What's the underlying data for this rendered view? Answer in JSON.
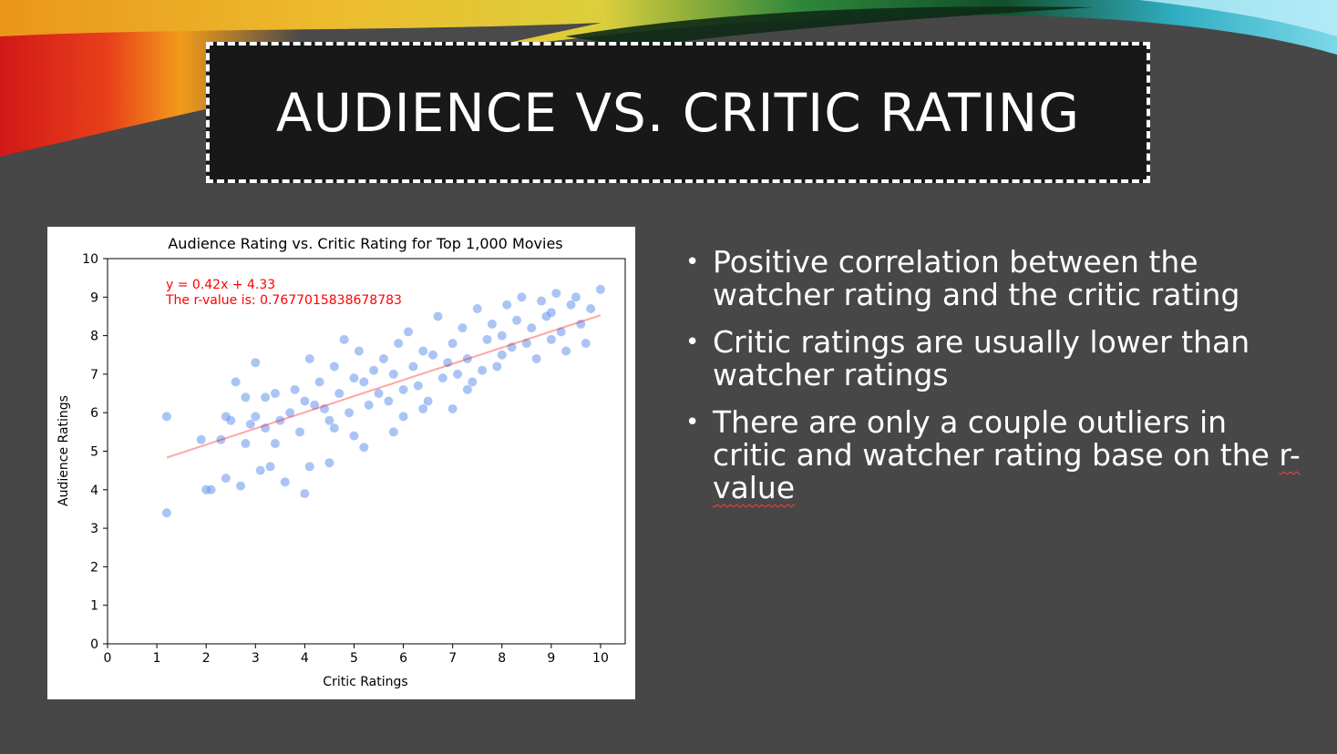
{
  "slide": {
    "title": "Audience vs. Critic Rating",
    "bullets": [
      {
        "text": "Positive correlation between the watcher rating and the critic rating"
      },
      {
        "text": "Critic ratings are usually lower than watcher ratings"
      },
      {
        "text_before": "There are only a couple outliers in critic and watcher rating base on the ",
        "text_flagged": "r-value"
      }
    ]
  },
  "chart_data": {
    "type": "scatter",
    "title": "Audience Rating vs. Critic Rating for Top 1,000 Movies",
    "xlabel": "Critic Ratings",
    "ylabel": "Audience Ratings",
    "xlim": [
      0,
      10.5
    ],
    "ylim": [
      0,
      10
    ],
    "xticks": [
      0,
      1,
      2,
      3,
      4,
      5,
      6,
      7,
      8,
      9,
      10
    ],
    "yticks": [
      0,
      1,
      2,
      3,
      4,
      5,
      6,
      7,
      8,
      9,
      10
    ],
    "annotation_line1": "y = 0.42x + 4.33",
    "annotation_line2": "The r-value is: 0.7677015838678783",
    "regression": {
      "slope": 0.42,
      "intercept": 4.33,
      "x_range": [
        1.2,
        10.0
      ]
    },
    "marker_color": "#6495ed",
    "line_color": "#ff0000",
    "x": [
      1.2,
      1.2,
      1.9,
      2.0,
      2.1,
      2.3,
      2.4,
      2.4,
      2.5,
      2.6,
      2.7,
      2.8,
      2.8,
      2.9,
      3.0,
      3.0,
      3.1,
      3.2,
      3.2,
      3.3,
      3.4,
      3.4,
      3.5,
      3.6,
      3.7,
      3.8,
      3.9,
      4.0,
      4.0,
      4.1,
      4.1,
      4.2,
      4.3,
      4.4,
      4.5,
      4.6,
      4.6,
      4.7,
      4.8,
      4.9,
      5.0,
      5.0,
      5.1,
      5.2,
      5.3,
      5.4,
      5.5,
      5.6,
      5.7,
      5.8,
      5.9,
      6.0,
      6.0,
      6.1,
      6.2,
      6.3,
      6.4,
      6.5,
      6.6,
      6.7,
      6.8,
      6.9,
      7.0,
      7.0,
      7.1,
      7.2,
      7.3,
      7.4,
      7.5,
      7.6,
      7.7,
      7.8,
      7.9,
      8.0,
      8.0,
      8.1,
      8.2,
      8.3,
      8.4,
      8.5,
      8.6,
      8.7,
      8.8,
      8.9,
      9.0,
      9.0,
      9.1,
      9.2,
      9.3,
      9.4,
      9.5,
      9.6,
      9.7,
      9.8,
      10.0,
      4.5,
      5.2,
      5.8,
      6.4,
      7.3
    ],
    "y": [
      5.9,
      3.4,
      5.3,
      4.0,
      4.0,
      5.3,
      4.3,
      5.9,
      5.8,
      6.8,
      4.1,
      6.4,
      5.2,
      5.7,
      7.3,
      5.9,
      4.5,
      5.6,
      6.4,
      4.6,
      5.2,
      6.5,
      5.8,
      4.2,
      6.0,
      6.6,
      5.5,
      3.9,
      6.3,
      7.4,
      4.6,
      6.2,
      6.8,
      6.1,
      4.7,
      7.2,
      5.6,
      6.5,
      7.9,
      6.0,
      6.9,
      5.4,
      7.6,
      6.8,
      6.2,
      7.1,
      6.5,
      7.4,
      6.3,
      7.0,
      7.8,
      6.6,
      5.9,
      8.1,
      7.2,
      6.7,
      7.6,
      6.3,
      7.5,
      8.5,
      6.9,
      7.3,
      7.8,
      6.1,
      7.0,
      8.2,
      7.4,
      6.8,
      8.7,
      7.1,
      7.9,
      8.3,
      7.2,
      8.0,
      7.5,
      8.8,
      7.7,
      8.4,
      9.0,
      7.8,
      8.2,
      7.4,
      8.9,
      8.5,
      7.9,
      8.6,
      9.1,
      8.1,
      7.6,
      8.8,
      9.0,
      8.3,
      7.8,
      8.7,
      9.2,
      5.8,
      5.1,
      5.5,
      6.1,
      6.6
    ]
  }
}
